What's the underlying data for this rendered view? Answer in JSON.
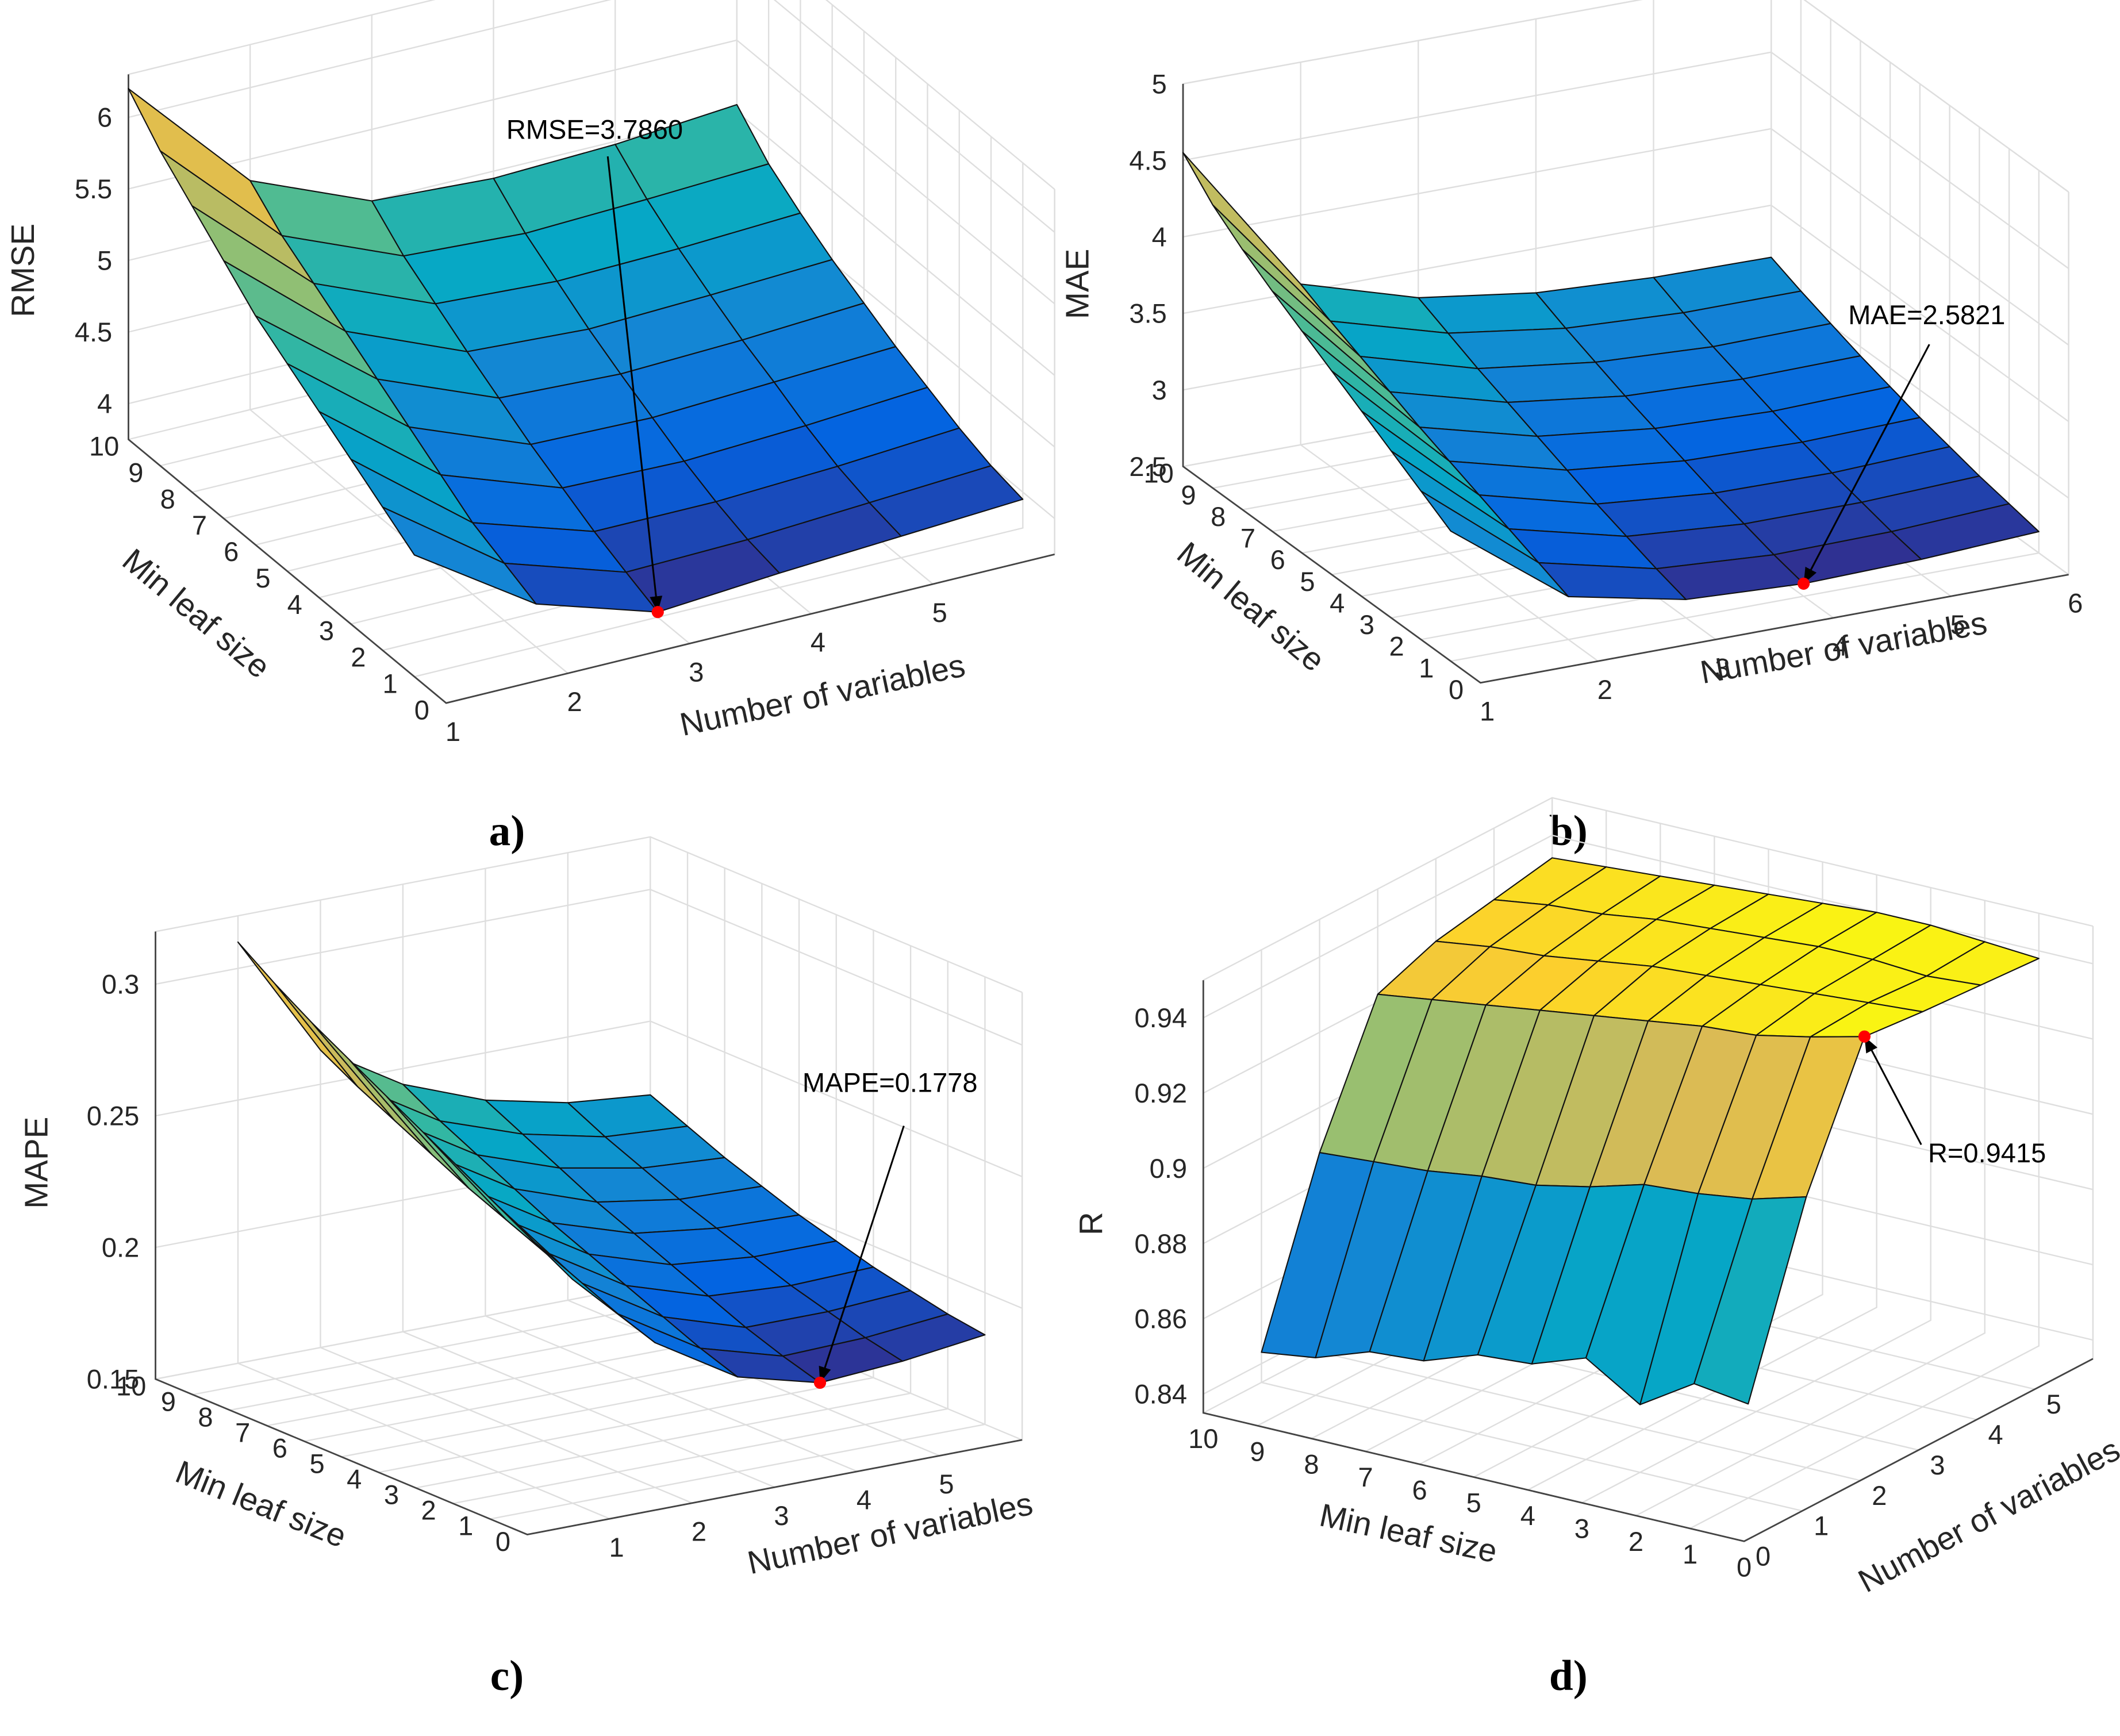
{
  "chart_data": [
    {
      "type": "surface",
      "label": "a)",
      "zlabel": "RMSE",
      "xlabel": "Number of variables",
      "ylabel": "Min leaf size",
      "x": [
        1,
        2,
        3,
        4,
        5,
        6
      ],
      "y": [
        1,
        2,
        3,
        4,
        5,
        6,
        7,
        8,
        9,
        10
      ],
      "values": [
        [
          4.6,
          4.05,
          3.786,
          3.85,
          3.9,
          3.95
        ],
        [
          4.75,
          4.15,
          3.88,
          3.9,
          3.95,
          4.0
        ],
        [
          4.9,
          4.25,
          3.98,
          3.98,
          4.02,
          4.08
        ],
        [
          5.05,
          4.4,
          4.1,
          4.08,
          4.12,
          4.18
        ],
        [
          5.2,
          4.55,
          4.22,
          4.2,
          4.24,
          4.28
        ],
        [
          5.35,
          4.7,
          4.36,
          4.32,
          4.35,
          4.4
        ],
        [
          5.55,
          4.85,
          4.5,
          4.45,
          4.48,
          4.52
        ],
        [
          5.75,
          5.0,
          4.65,
          4.6,
          4.62,
          4.66
        ],
        [
          5.95,
          5.15,
          4.8,
          4.75,
          4.78,
          4.82
        ],
        [
          6.2,
          5.35,
          5.0,
          4.95,
          4.98,
          5.05
        ]
      ],
      "xlim": [
        1,
        6
      ],
      "ylim": [
        0,
        10
      ],
      "zlim": [
        3.75,
        6.3
      ],
      "xticks": [
        1,
        2,
        3,
        4,
        5
      ],
      "yticks": [
        0,
        1,
        2,
        3,
        4,
        5,
        6,
        7,
        8,
        9,
        10
      ],
      "zticks": [
        4,
        4.5,
        5,
        5.5,
        6
      ],
      "annotation": {
        "text": "RMSE=3.7860",
        "x": 3,
        "y": 1,
        "z": 3.786,
        "color": "#ff0000"
      },
      "colormap": [
        "#352a87",
        "#0363e1",
        "#1485d4",
        "#06a7c6",
        "#38b99e",
        "#92bf73",
        "#d9ba56",
        "#fcce2e",
        "#f9fb0e"
      ],
      "grid": true
    },
    {
      "type": "surface",
      "label": "b)",
      "zlabel": "MAE",
      "xlabel": "Number of variables",
      "ylabel": "Min leaf size",
      "x": [
        1,
        2,
        3,
        4,
        5,
        6
      ],
      "y": [
        1,
        2,
        3,
        4,
        5,
        6,
        7,
        8,
        9,
        10
      ],
      "values": [
        [
          3.35,
          2.78,
          2.62,
          2.5821,
          2.6,
          2.64
        ],
        [
          3.47,
          2.86,
          2.68,
          2.63,
          2.64,
          2.68
        ],
        [
          3.59,
          2.94,
          2.75,
          2.69,
          2.69,
          2.72
        ],
        [
          3.71,
          3.02,
          2.82,
          2.75,
          2.74,
          2.77
        ],
        [
          3.83,
          3.1,
          2.9,
          2.82,
          2.8,
          2.82
        ],
        [
          3.95,
          3.18,
          2.98,
          2.89,
          2.86,
          2.88
        ],
        [
          4.07,
          3.27,
          3.06,
          2.96,
          2.93,
          2.94
        ],
        [
          4.2,
          3.36,
          3.14,
          3.04,
          3.0,
          3.01
        ],
        [
          4.35,
          3.45,
          3.23,
          3.12,
          3.08,
          3.08
        ],
        [
          4.55,
          3.55,
          3.32,
          3.21,
          3.17,
          3.16
        ]
      ],
      "xlim": [
        1,
        6
      ],
      "ylim": [
        0,
        10
      ],
      "zlim": [
        2.5,
        5
      ],
      "xticks": [
        1,
        2,
        3,
        4,
        5,
        6
      ],
      "yticks": [
        0,
        1,
        2,
        3,
        4,
        5,
        6,
        7,
        8,
        9,
        10
      ],
      "zticks": [
        2.5,
        3,
        3.5,
        4,
        4.5,
        5
      ],
      "annotation": {
        "text": "MAE=2.5821",
        "x": 4,
        "y": 1,
        "z": 2.5821,
        "color": "#ff0000"
      },
      "colormap": [
        "#352a87",
        "#0363e1",
        "#1485d4",
        "#06a7c6",
        "#38b99e",
        "#92bf73",
        "#d9ba56",
        "#fcce2e",
        "#f9fb0e"
      ],
      "grid": true
    },
    {
      "type": "surface",
      "label": "c)",
      "zlabel": "MAPE",
      "xlabel": "Number of variables",
      "ylabel": "Min leaf size",
      "x": [
        1,
        2,
        3,
        4,
        5,
        6
      ],
      "y": [
        1,
        2,
        3,
        4,
        5,
        6,
        7,
        8,
        9,
        10
      ],
      "values": [
        [
          0.235,
          0.205,
          0.186,
          0.1778,
          0.18,
          0.184
        ],
        [
          0.243,
          0.21,
          0.191,
          0.182,
          0.183,
          0.186
        ],
        [
          0.251,
          0.216,
          0.197,
          0.187,
          0.187,
          0.189
        ],
        [
          0.259,
          0.222,
          0.203,
          0.193,
          0.191,
          0.192
        ],
        [
          0.267,
          0.228,
          0.209,
          0.199,
          0.196,
          0.196
        ],
        [
          0.275,
          0.234,
          0.215,
          0.205,
          0.201,
          0.2
        ],
        [
          0.283,
          0.241,
          0.222,
          0.211,
          0.206,
          0.205
        ],
        [
          0.291,
          0.248,
          0.229,
          0.218,
          0.212,
          0.21
        ],
        [
          0.3,
          0.255,
          0.236,
          0.225,
          0.218,
          0.216
        ],
        [
          0.31,
          0.263,
          0.244,
          0.232,
          0.225,
          0.222
        ]
      ],
      "xlim": [
        0,
        6
      ],
      "ylim": [
        0,
        10
      ],
      "zlim": [
        0.15,
        0.32
      ],
      "xticks": [
        1,
        2,
        3,
        4,
        5
      ],
      "yticks": [
        0,
        1,
        2,
        3,
        4,
        5,
        6,
        7,
        8,
        9,
        10
      ],
      "zticks": [
        0.15,
        0.2,
        0.25,
        0.3
      ],
      "annotation": {
        "text": "MAPE=0.1778",
        "x": 4,
        "y": 1,
        "z": 0.1778,
        "color": "#ff0000"
      },
      "colormap": [
        "#352a87",
        "#0363e1",
        "#1485d4",
        "#06a7c6",
        "#38b99e",
        "#92bf73",
        "#d9ba56",
        "#fcce2e",
        "#f9fb0e"
      ],
      "grid": true
    },
    {
      "type": "surface",
      "label": "d)",
      "zlabel": "R",
      "xlabel": "Number of variables",
      "ylabel": "Min leaf size",
      "x": [
        1,
        2,
        3,
        4,
        5,
        6
      ],
      "y": [
        1,
        2,
        3,
        4,
        5,
        6,
        7,
        8,
        9,
        10
      ],
      "values": [
        [
          0.86,
          0.907,
          0.9415,
          0.94,
          0.939,
          0.938
        ],
        [
          0.862,
          0.903,
          0.938,
          0.939,
          0.938,
          0.939
        ],
        [
          0.853,
          0.901,
          0.935,
          0.938,
          0.939,
          0.94
        ],
        [
          0.862,
          0.9,
          0.934,
          0.937,
          0.939,
          0.94
        ],
        [
          0.857,
          0.896,
          0.932,
          0.936,
          0.938,
          0.939
        ],
        [
          0.856,
          0.893,
          0.93,
          0.935,
          0.937,
          0.938
        ],
        [
          0.851,
          0.892,
          0.928,
          0.933,
          0.936,
          0.937
        ],
        [
          0.85,
          0.89,
          0.926,
          0.931,
          0.934,
          0.936
        ],
        [
          0.845,
          0.889,
          0.924,
          0.93,
          0.933,
          0.935
        ],
        [
          0.843,
          0.888,
          0.922,
          0.928,
          0.931,
          0.934
        ]
      ],
      "xlim": [
        0,
        6
      ],
      "ylim": [
        0,
        10
      ],
      "zlim": [
        0.835,
        0.95
      ],
      "xticks": [
        0,
        1,
        2,
        3,
        4,
        5
      ],
      "yticks": [
        0,
        1,
        2,
        3,
        4,
        5,
        6,
        7,
        8,
        9,
        10
      ],
      "zticks": [
        0.84,
        0.86,
        0.88,
        0.9,
        0.92,
        0.94
      ],
      "annotation": {
        "text": "R=0.9415",
        "x": 3,
        "y": 1,
        "z": 0.9415,
        "color": "#ff0000"
      },
      "colormap": [
        "#352a87",
        "#0363e1",
        "#1485d4",
        "#06a7c6",
        "#38b99e",
        "#92bf73",
        "#d9ba56",
        "#fcce2e",
        "#f9fb0e"
      ],
      "grid": true
    }
  ]
}
